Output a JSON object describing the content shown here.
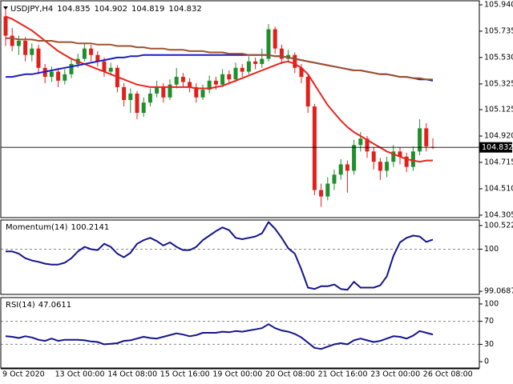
{
  "chart_data": [
    {
      "type": "candlestick",
      "title": "USDJPY,H4",
      "categories": [
        "9 Oct 2020",
        null,
        null,
        null,
        null,
        null,
        null,
        null,
        "13 Oct 00:00",
        null,
        null,
        null,
        null,
        null,
        null,
        null,
        "14 Oct 08:00",
        null,
        null,
        null,
        null,
        null,
        null,
        null,
        "15 Oct 16:00",
        null,
        null,
        null,
        null,
        null,
        null,
        null,
        "19 Oct 00:00",
        null,
        null,
        null,
        null,
        null,
        null,
        null,
        "20 Oct 08:00",
        null,
        null,
        null,
        null,
        null,
        null,
        null,
        "21 Oct 16:00",
        null,
        null,
        null,
        null,
        null,
        null,
        null,
        "23 Oct 00:00",
        null,
        null,
        null,
        null,
        null,
        null,
        null,
        "26 Oct 08:00",
        null
      ],
      "open": [
        105.85,
        105.7,
        105.62,
        105.66,
        105.55,
        105.6,
        105.45,
        105.38,
        105.42,
        105.35,
        105.4,
        105.48,
        105.52,
        105.6,
        105.55,
        105.5,
        105.42,
        105.45,
        105.3,
        105.2,
        105.25,
        105.1,
        105.18,
        105.25,
        105.3,
        105.22,
        105.32,
        105.38,
        105.34,
        105.3,
        105.22,
        105.28,
        105.35,
        105.32,
        105.4,
        105.36,
        105.45,
        105.42,
        105.5,
        105.48,
        105.52,
        105.75,
        105.6,
        105.52,
        105.55,
        105.45,
        105.38,
        105.15,
        104.5,
        104.45,
        104.55,
        104.62,
        104.7,
        104.65,
        104.85,
        104.9,
        104.8,
        104.72,
        104.65,
        104.72,
        104.8,
        104.76,
        104.68,
        104.8,
        104.98,
        104.835
      ],
      "high": [
        105.92,
        105.76,
        105.7,
        105.69,
        105.64,
        105.63,
        105.48,
        105.46,
        105.45,
        105.44,
        105.52,
        105.56,
        105.64,
        105.63,
        105.58,
        105.53,
        105.49,
        105.47,
        105.33,
        105.29,
        105.27,
        105.22,
        105.29,
        105.35,
        105.33,
        105.36,
        105.45,
        105.41,
        105.37,
        105.33,
        105.32,
        105.39,
        105.38,
        105.44,
        105.43,
        105.49,
        105.48,
        105.54,
        105.53,
        105.6,
        105.79,
        105.77,
        105.63,
        105.59,
        105.57,
        105.48,
        105.4,
        105.17,
        104.55,
        104.6,
        104.66,
        104.74,
        104.73,
        104.89,
        104.95,
        104.92,
        104.83,
        104.75,
        104.76,
        104.85,
        104.83,
        104.79,
        104.84,
        105.05,
        105.02,
        104.902
      ],
      "low": [
        105.62,
        105.58,
        105.55,
        105.5,
        105.5,
        105.4,
        105.33,
        105.34,
        105.3,
        105.32,
        105.37,
        105.45,
        105.5,
        105.5,
        105.46,
        105.38,
        105.39,
        105.26,
        105.15,
        105.1,
        105.05,
        105.07,
        105.15,
        105.22,
        105.18,
        105.2,
        105.29,
        105.3,
        105.26,
        105.18,
        105.2,
        105.25,
        105.28,
        105.3,
        105.32,
        105.34,
        105.38,
        105.4,
        105.44,
        105.45,
        105.5,
        105.56,
        105.48,
        105.49,
        105.41,
        105.33,
        105.1,
        104.46,
        104.37,
        104.42,
        104.5,
        104.58,
        104.48,
        104.62,
        104.8,
        104.75,
        104.66,
        104.58,
        104.6,
        104.68,
        104.7,
        104.64,
        104.65,
        104.77,
        104.8,
        104.819
      ],
      "close": [
        105.7,
        105.62,
        105.66,
        105.55,
        105.6,
        105.45,
        105.38,
        105.42,
        105.35,
        105.4,
        105.48,
        105.52,
        105.6,
        105.55,
        105.5,
        105.42,
        105.45,
        105.3,
        105.2,
        105.25,
        105.1,
        105.18,
        105.25,
        105.3,
        105.22,
        105.32,
        105.38,
        105.34,
        105.3,
        105.22,
        105.28,
        105.35,
        105.32,
        105.4,
        105.36,
        105.45,
        105.42,
        105.5,
        105.48,
        105.52,
        105.75,
        105.6,
        105.52,
        105.55,
        105.45,
        105.38,
        105.15,
        104.5,
        104.45,
        104.55,
        104.62,
        104.7,
        104.65,
        104.85,
        104.9,
        104.8,
        104.72,
        104.65,
        104.72,
        104.8,
        104.76,
        104.68,
        104.8,
        104.98,
        104.84,
        104.832
      ],
      "bull_color": "#1f8f2c",
      "bear_color": "#e0201b",
      "series": [
        {
          "color": "#e8241e",
          "values": [
            105.85,
            105.83,
            105.8,
            105.77,
            105.74,
            105.7,
            105.66,
            105.62,
            105.58,
            105.55,
            105.52,
            105.5,
            105.48,
            105.46,
            105.44,
            105.42,
            105.4,
            105.38,
            105.36,
            105.34,
            105.32,
            105.31,
            105.3,
            105.3,
            105.3,
            105.3,
            105.3,
            105.3,
            105.3,
            105.29,
            105.29,
            105.29,
            105.3,
            105.31,
            105.33,
            105.35,
            105.37,
            105.39,
            105.41,
            105.43,
            105.45,
            105.47,
            105.49,
            105.5,
            105.48,
            105.45,
            105.4,
            105.32,
            105.24,
            105.16,
            105.1,
            105.04,
            104.99,
            104.95,
            104.92,
            104.89,
            104.86,
            104.83,
            104.8,
            104.78,
            104.76,
            104.74,
            104.73,
            104.72,
            104.73,
            104.73
          ]
        },
        {
          "color": "#1c1cc0",
          "values": [
            105.38,
            105.38,
            105.39,
            105.4,
            105.4,
            105.41,
            105.42,
            105.43,
            105.44,
            105.45,
            105.46,
            105.47,
            105.48,
            105.49,
            105.5,
            105.51,
            105.52,
            105.53,
            105.53,
            105.54,
            105.54,
            105.55,
            105.55,
            105.55,
            105.55,
            105.55,
            105.55,
            105.55,
            105.55,
            105.55,
            105.55,
            105.55,
            105.55,
            105.55,
            105.55,
            105.55,
            105.55,
            105.55,
            105.55,
            105.55,
            105.55,
            105.54,
            105.54,
            105.53,
            105.52,
            105.51,
            105.5,
            105.49,
            105.48,
            105.47,
            105.46,
            105.45,
            105.44,
            105.43,
            105.43,
            105.42,
            105.41,
            105.4,
            105.4,
            105.39,
            105.38,
            105.38,
            105.37,
            105.36,
            105.36,
            105.35
          ]
        },
        {
          "color": "#a0522d",
          "values": [
            105.68,
            105.68,
            105.67,
            105.67,
            105.67,
            105.66,
            105.66,
            105.66,
            105.65,
            105.65,
            105.65,
            105.64,
            105.64,
            105.64,
            105.63,
            105.63,
            105.63,
            105.62,
            105.62,
            105.62,
            105.61,
            105.61,
            105.6,
            105.6,
            105.6,
            105.59,
            105.59,
            105.59,
            105.58,
            105.58,
            105.58,
            105.57,
            105.57,
            105.57,
            105.56,
            105.56,
            105.56,
            105.55,
            105.55,
            105.55,
            105.55,
            105.54,
            105.54,
            105.53,
            105.52,
            105.51,
            105.5,
            105.49,
            105.48,
            105.47,
            105.46,
            105.45,
            105.44,
            105.43,
            105.43,
            105.42,
            105.41,
            105.4,
            105.4,
            105.39,
            105.38,
            105.38,
            105.37,
            105.37,
            105.36,
            105.36
          ]
        }
      ],
      "ylim": [
        104.286,
        105.971
      ],
      "yticks": [
        {
          "value": 105.94,
          "label": "105.940"
        },
        {
          "value": 105.735,
          "label": "105.735"
        },
        {
          "value": 105.53,
          "label": "105.530"
        },
        {
          "value": 105.325,
          "label": "105.325"
        },
        {
          "value": 105.125,
          "label": "105.125"
        },
        {
          "value": 104.92,
          "label": "104.920"
        },
        {
          "value": 104.715,
          "label": "104.715"
        },
        {
          "value": 104.51,
          "label": "104.510"
        },
        {
          "value": 104.305,
          "label": "104.305"
        }
      ]
    },
    {
      "type": "line",
      "title": "Momentum(14)",
      "series": [
        {
          "color": "#14148c",
          "values": [
            99.95,
            99.95,
            99.9,
            99.8,
            99.75,
            99.72,
            99.68,
            99.66,
            99.66,
            99.7,
            99.8,
            99.95,
            100.05,
            100.0,
            99.98,
            100.12,
            100.05,
            99.9,
            99.82,
            99.92,
            100.12,
            100.2,
            100.25,
            100.18,
            100.08,
            100.15,
            100.05,
            99.98,
            99.98,
            100.05,
            100.2,
            100.3,
            100.4,
            100.48,
            100.42,
            100.25,
            100.22,
            100.25,
            100.28,
            100.35,
            100.6,
            100.45,
            100.25,
            100.02,
            99.9,
            99.55,
            99.15,
            99.12,
            99.18,
            99.18,
            99.22,
            99.12,
            99.1,
            99.28,
            99.15,
            99.15,
            99.15,
            99.2,
            99.4,
            99.85,
            100.15,
            100.25,
            100.3,
            100.28,
            100.16,
            100.2141
          ]
        }
      ],
      "ylim": [
        99.0,
        100.645
      ],
      "yticks": [
        100.5222,
        100,
        99.0687
      ],
      "levels": [
        100
      ]
    },
    {
      "type": "line",
      "title": "RSI(14)",
      "series": [
        {
          "color": "#14148c",
          "values": [
            44,
            43,
            41,
            44,
            42,
            38,
            36,
            40,
            36,
            38,
            38,
            38,
            37,
            35,
            34,
            30,
            31,
            32,
            36,
            37,
            40,
            43,
            41,
            40,
            43,
            46,
            49,
            47,
            44,
            46,
            50,
            50,
            50,
            52,
            51,
            53,
            52,
            54,
            56,
            58,
            65,
            58,
            54,
            52,
            48,
            42,
            33,
            24,
            22,
            26,
            30,
            32,
            30,
            37,
            40,
            37,
            34,
            36,
            40,
            44,
            43,
            40,
            45,
            53,
            50,
            47.0611
          ]
        }
      ],
      "ylim": [
        -11,
        111
      ],
      "yticks": [
        100,
        70,
        30,
        0
      ],
      "levels": [
        70,
        30
      ]
    }
  ]
}
